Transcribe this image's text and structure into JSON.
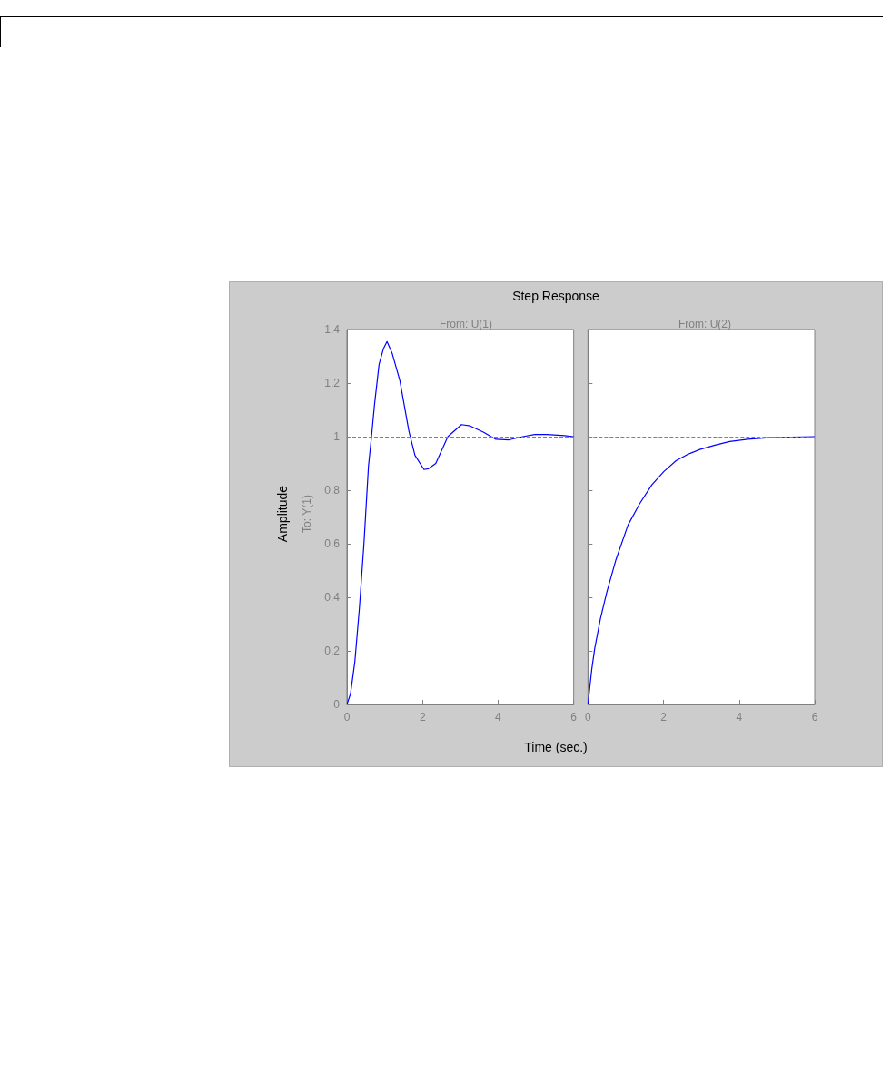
{
  "chart_data": [
    {
      "type": "line",
      "title": "Step Response",
      "subtitle": "From: U(1)",
      "xlabel": "Time (sec.)",
      "ylabel": "Amplitude",
      "annotations": [
        "To: Y(1)"
      ],
      "marker": "none",
      "color": "#0000ff",
      "x": [
        0,
        0.095,
        0.21,
        0.33,
        0.45,
        0.57,
        0.65,
        0.73,
        0.85,
        0.97,
        1.06,
        1.2,
        1.4,
        1.64,
        1.8,
        2.04,
        2.15,
        2.35,
        2.67,
        3.03,
        3.26,
        3.62,
        3.94,
        4.29,
        4.65,
        4.97,
        5.29,
        5.76,
        6
      ],
      "values": [
        0,
        0.04,
        0.16,
        0.36,
        0.6,
        0.89,
        1.0,
        1.12,
        1.27,
        1.33,
        1.355,
        1.31,
        1.21,
        1.02,
        0.93,
        0.877,
        0.88,
        0.9,
        1.0,
        1.045,
        1.04,
        1.016,
        0.99,
        0.988,
        1.0,
        1.008,
        1.008,
        1.004,
        1.0
      ],
      "xlim": [
        0,
        6
      ],
      "xticks": [
        0,
        2,
        4,
        6
      ],
      "ylim": [
        0,
        1.4
      ],
      "yticks": [
        0,
        0.2,
        0.4,
        0.6,
        0.8,
        1,
        1.2,
        1.4
      ],
      "ref_lines": [
        {
          "axis": "y",
          "value": 1,
          "color": "#808080",
          "line_style": "dashed"
        }
      ]
    },
    {
      "type": "line",
      "subtitle": "From: U(2)",
      "marker": "none",
      "color": "#0000ff",
      "tick_labels": "x",
      "x": [
        0,
        0.1,
        0.18,
        0.33,
        0.5,
        0.74,
        1.06,
        1.37,
        1.69,
        2.01,
        2.33,
        2.64,
        2.96,
        3.36,
        3.75,
        4.23,
        4.79,
        5.34,
        6
      ],
      "values": [
        0,
        0.13,
        0.21,
        0.32,
        0.42,
        0.54,
        0.67,
        0.75,
        0.82,
        0.87,
        0.91,
        0.934,
        0.952,
        0.968,
        0.982,
        0.99,
        0.996,
        0.998,
        1.0
      ],
      "xlim": [
        0,
        6
      ],
      "xticks": [
        0,
        2,
        4,
        6
      ],
      "ylim": [
        0,
        1.4
      ],
      "yticks": [
        0,
        0.2,
        0.4,
        0.6,
        0.8,
        1,
        1.2,
        1.4
      ],
      "ref_lines": [
        {
          "axis": "y",
          "value": 1,
          "color": "#808080",
          "line_style": "dashed"
        }
      ]
    }
  ]
}
